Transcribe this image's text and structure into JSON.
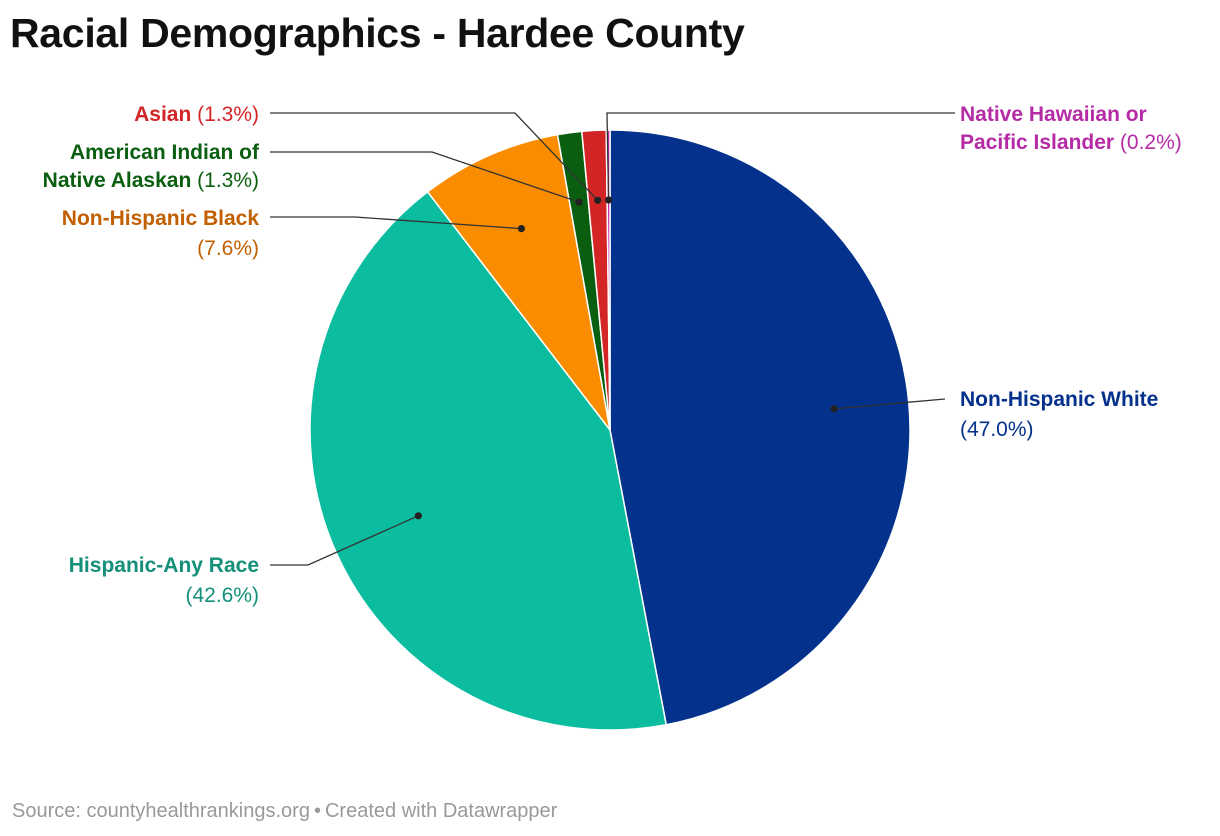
{
  "chart_data": {
    "type": "pie",
    "title": "Racial Demographics - Hardee County",
    "slices": [
      {
        "label": "Non-Hispanic White",
        "value": 47.0,
        "value_label": "(47.0%)",
        "color": "#03318c",
        "label_color": "#03318c"
      },
      {
        "label": "Hispanic-Any Race",
        "value": 42.6,
        "value_label": "(42.6%)",
        "color": "#0bbc9f",
        "label_color": "#138f7a"
      },
      {
        "label": "Non-Hispanic Black",
        "value": 7.6,
        "value_label": "(7.6%)",
        "color": "#fa8c00",
        "label_color": "#c25f00"
      },
      {
        "label": "American Indian of Native Alaskan",
        "value": 1.3,
        "value_label": "(1.3%)",
        "color": "#0a5e0f",
        "label_color": "#0a5e0f"
      },
      {
        "label": "Asian",
        "value": 1.3,
        "value_label": "(1.3%)",
        "color": "#d42526",
        "label_color": "#d42526"
      },
      {
        "label": "Native Hawaiian or Pacific Islander",
        "value": 0.2,
        "value_label": "(0.2%)",
        "color": "#c42fa8",
        "label_color": "#b52ba6"
      }
    ]
  },
  "footer": {
    "source": "Source: countyhealthrankings.org",
    "separator": "•",
    "credit": "Created with Datawrapper"
  }
}
